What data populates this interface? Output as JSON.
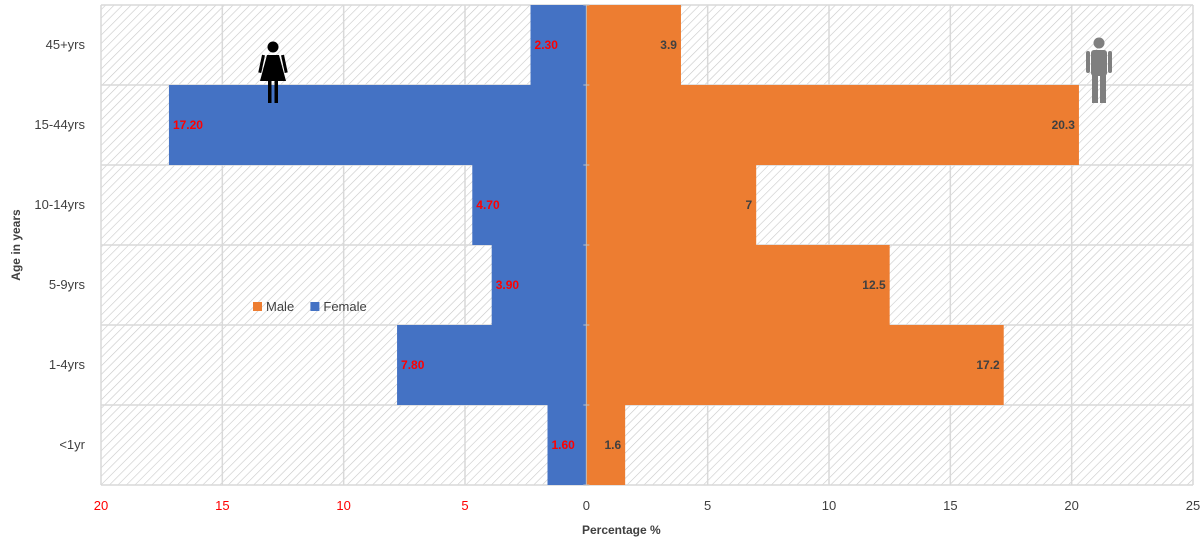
{
  "chart_data": {
    "type": "bar",
    "orientation": "horizontal",
    "layout": "population-pyramid",
    "title": "",
    "xlabel": "Percentage %",
    "ylabel": "Age in years",
    "categories": [
      "45+yrs",
      "15-44yrs",
      "10-14yrs",
      "5-9yrs",
      "1-4yrs",
      "<1yr"
    ],
    "series": [
      {
        "name": "Male",
        "side": "right",
        "color": "#ED7D31",
        "label_color": "#404040",
        "values": [
          3.9,
          20.3,
          7,
          12.5,
          17.2,
          1.6
        ],
        "labels": [
          "3.9",
          "20.3",
          "7",
          "12.5",
          "17.2",
          "1.6"
        ]
      },
      {
        "name": "Female",
        "side": "left",
        "color": "#4472C4",
        "label_color": "#FF0000",
        "values": [
          2.3,
          17.2,
          4.7,
          3.9,
          7.8,
          1.6
        ],
        "labels": [
          "2.30",
          "17.20",
          "4.70",
          "3.90",
          "7.80",
          "1.60"
        ]
      }
    ],
    "xlim": [
      -20,
      25
    ],
    "x_ticks_left": [
      "20",
      "15",
      "10",
      "5"
    ],
    "x_ticks_right": [
      "0",
      "5",
      "10",
      "15",
      "20",
      "25"
    ],
    "left_tick_color": "#FF0000",
    "right_tick_color": "#404040",
    "grid": true,
    "background_pattern": "diagonal-hatch",
    "legend": {
      "placement": "center-left",
      "entries": [
        "Male",
        "Female"
      ]
    },
    "icons": [
      "female-figure-icon",
      "male-figure-icon"
    ]
  }
}
